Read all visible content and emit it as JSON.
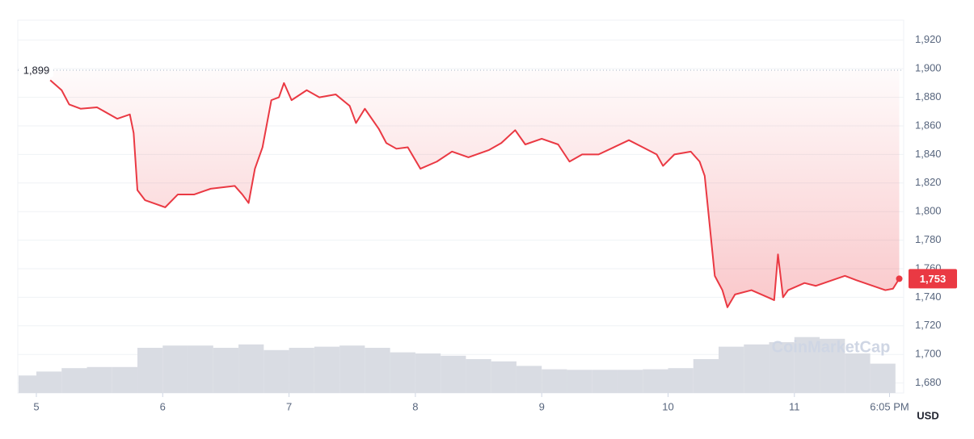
{
  "chart_data": {
    "type": "line",
    "x": [
      5.11,
      5.2,
      5.26,
      5.35,
      5.48,
      5.64,
      5.74,
      5.77,
      5.8,
      5.86,
      6.02,
      6.12,
      6.25,
      6.38,
      6.57,
      6.63,
      6.68,
      6.73,
      6.79,
      6.86,
      6.92,
      6.96,
      7.02,
      7.14,
      7.24,
      7.37,
      7.48,
      7.53,
      7.6,
      7.71,
      7.77,
      7.85,
      7.94,
      8.04,
      8.17,
      8.29,
      8.42,
      8.58,
      8.68,
      8.79,
      8.87,
      9.0,
      9.13,
      9.22,
      9.32,
      9.45,
      9.57,
      9.69,
      9.8,
      9.91,
      9.96,
      10.05,
      10.18,
      10.25,
      10.29,
      10.33,
      10.37,
      10.43,
      10.47,
      10.53,
      10.66,
      10.79,
      10.84,
      10.87,
      10.91,
      10.95,
      11.08,
      11.17,
      11.3,
      11.4,
      11.49,
      11.62,
      11.72,
      11.78,
      11.83
    ],
    "series": [
      {
        "color": "#ea3943",
        "values": [
          1892,
          1885,
          1875,
          1872,
          1873,
          1865,
          1868,
          1855,
          1815,
          1808,
          1803,
          1812,
          1812,
          1816,
          1818,
          1812,
          1806,
          1830,
          1845,
          1878,
          1880,
          1890,
          1878,
          1885,
          1880,
          1882,
          1874,
          1862,
          1872,
          1858,
          1848,
          1844,
          1845,
          1830,
          1835,
          1842,
          1838,
          1843,
          1848,
          1857,
          1847,
          1851,
          1847,
          1835,
          1840,
          1840,
          1845,
          1850,
          1845,
          1840,
          1832,
          1840,
          1842,
          1835,
          1825,
          1790,
          1755,
          1745,
          1733,
          1742,
          1745,
          1740,
          1738,
          1770,
          1740,
          1745,
          1750,
          1748,
          1752,
          1755,
          1752,
          1748,
          1745,
          1746,
          1753
        ]
      }
    ],
    "volume": {
      "color": "#d9dce3",
      "x": [
        4.9,
        5.1,
        5.3,
        5.5,
        5.7,
        5.9,
        6.1,
        6.3,
        6.5,
        6.7,
        6.9,
        7.1,
        7.3,
        7.5,
        7.7,
        7.9,
        8.1,
        8.3,
        8.5,
        8.7,
        8.9,
        9.1,
        9.3,
        9.5,
        9.7,
        9.9,
        10.1,
        10.3,
        10.5,
        10.7,
        10.9,
        11.1,
        11.3,
        11.5,
        11.7
      ],
      "values": [
        31,
        38,
        44,
        46,
        46,
        80,
        84,
        84,
        80,
        86,
        76,
        80,
        82,
        84,
        80,
        72,
        70,
        66,
        60,
        56,
        48,
        42,
        41,
        41,
        41,
        42,
        44,
        60,
        82,
        86,
        90,
        99,
        96,
        70,
        52
      ]
    },
    "xlim": [
      4.853,
      11.865
    ],
    "xticks": [
      5,
      6,
      7,
      8,
      9,
      10,
      11,
      {
        "value": 11.753,
        "label": "6:05 PM"
      }
    ],
    "ylim": [
      1673,
      1934
    ],
    "yticks": [
      {
        "value": 1680,
        "label": "1,680"
      },
      {
        "value": 1700,
        "label": "1,700"
      },
      {
        "value": 1720,
        "label": "1,720"
      },
      {
        "value": 1740,
        "label": "1,740"
      },
      {
        "value": 1760,
        "label": "1,760"
      },
      {
        "value": 1780,
        "label": "1,780"
      },
      {
        "value": 1800,
        "label": "1,800"
      },
      {
        "value": 1820,
        "label": "1,820"
      },
      {
        "value": 1840,
        "label": "1,840"
      },
      {
        "value": 1860,
        "label": "1,860"
      },
      {
        "value": 1880,
        "label": "1,880"
      },
      {
        "value": 1900,
        "label": "1,900"
      },
      {
        "value": 1920,
        "label": "1,920"
      }
    ],
    "grid": true,
    "reference": {
      "value": 1899,
      "label": "1,899"
    },
    "current": {
      "value": 1753,
      "label": "1,753",
      "color": "#ea3943"
    },
    "y_unit": "USD",
    "watermark": "CoinMarketCap"
  }
}
